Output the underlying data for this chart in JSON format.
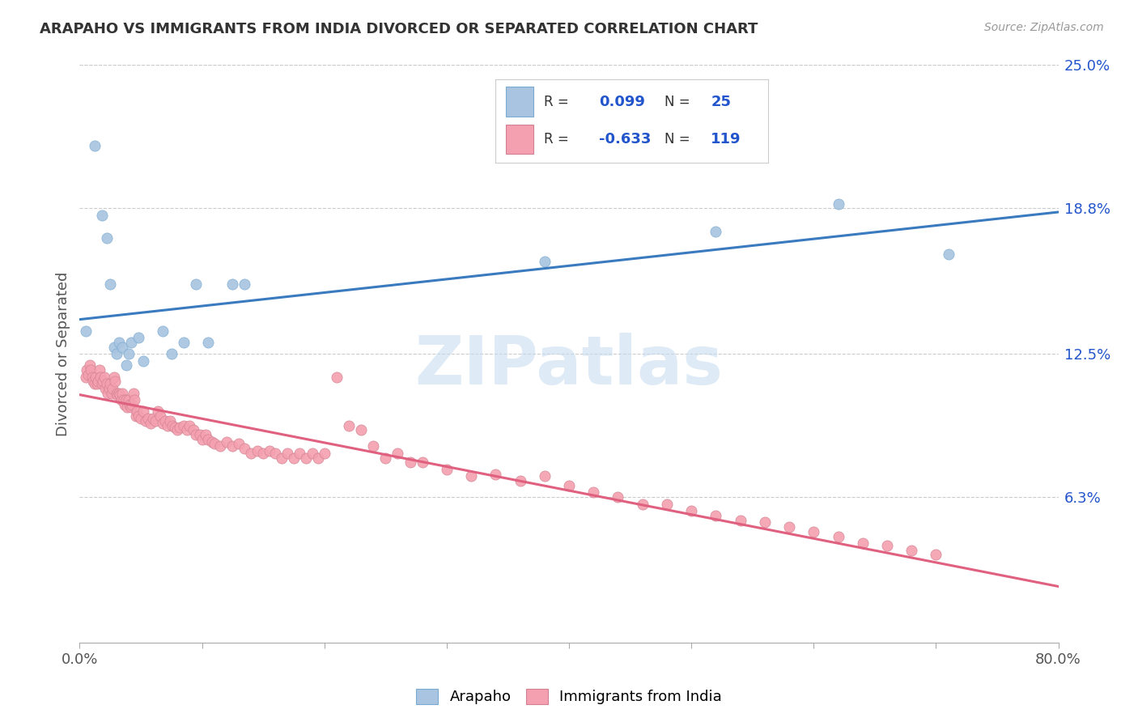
{
  "title": "ARAPAHO VS IMMIGRANTS FROM INDIA DIVORCED OR SEPARATED CORRELATION CHART",
  "source": "Source: ZipAtlas.com",
  "ylabel": "Divorced or Separated",
  "arapaho_R": 0.099,
  "arapaho_N": 25,
  "india_R": -0.633,
  "india_N": 119,
  "arapaho_color": "#a8c4e0",
  "india_color": "#f4a0b0",
  "arapaho_line_color": "#3a7abf",
  "india_line_color": "#e06080",
  "india_dash_color": "#f0a0b8",
  "legend_R_color": "#2255cc",
  "legend_label_color": "#333333",
  "watermark_color": "#dce8f5",
  "xlim": [
    0.0,
    0.8
  ],
  "ylim": [
    0.0,
    0.25
  ],
  "ytick_vals": [
    0.063,
    0.125,
    0.188,
    0.25
  ],
  "ytick_labels": [
    "6.3%",
    "12.5%",
    "18.8%",
    "25.0%"
  ],
  "xtick_vals": [
    0.0,
    0.1,
    0.2,
    0.3,
    0.4,
    0.5,
    0.6,
    0.7,
    0.8
  ],
  "xtick_labels": [
    "0.0%",
    "",
    "",
    "",
    "",
    "",
    "",
    "",
    "80.0%"
  ],
  "arapaho_scatter_x": [
    0.005,
    0.012,
    0.018,
    0.022,
    0.025,
    0.028,
    0.03,
    0.032,
    0.035,
    0.038,
    0.04,
    0.042,
    0.048,
    0.052,
    0.068,
    0.075,
    0.085,
    0.095,
    0.105,
    0.125,
    0.135,
    0.38,
    0.52,
    0.62,
    0.71
  ],
  "arapaho_scatter_y": [
    0.135,
    0.215,
    0.185,
    0.175,
    0.155,
    0.128,
    0.125,
    0.13,
    0.128,
    0.12,
    0.125,
    0.13,
    0.132,
    0.122,
    0.135,
    0.125,
    0.13,
    0.155,
    0.13,
    0.155,
    0.155,
    0.165,
    0.178,
    0.19,
    0.168
  ],
  "india_scatter_x": [
    0.005,
    0.006,
    0.007,
    0.008,
    0.009,
    0.01,
    0.011,
    0.012,
    0.013,
    0.014,
    0.015,
    0.016,
    0.017,
    0.018,
    0.019,
    0.02,
    0.021,
    0.022,
    0.023,
    0.024,
    0.025,
    0.026,
    0.027,
    0.028,
    0.029,
    0.03,
    0.031,
    0.032,
    0.033,
    0.034,
    0.035,
    0.036,
    0.037,
    0.038,
    0.039,
    0.04,
    0.041,
    0.042,
    0.043,
    0.044,
    0.045,
    0.046,
    0.047,
    0.048,
    0.05,
    0.052,
    0.054,
    0.056,
    0.058,
    0.06,
    0.062,
    0.064,
    0.066,
    0.068,
    0.07,
    0.072,
    0.074,
    0.076,
    0.078,
    0.08,
    0.082,
    0.085,
    0.088,
    0.09,
    0.093,
    0.095,
    0.098,
    0.1,
    0.103,
    0.105,
    0.108,
    0.11,
    0.115,
    0.12,
    0.125,
    0.13,
    0.135,
    0.14,
    0.145,
    0.15,
    0.155,
    0.16,
    0.165,
    0.17,
    0.175,
    0.18,
    0.185,
    0.19,
    0.195,
    0.2,
    0.21,
    0.22,
    0.23,
    0.24,
    0.25,
    0.26,
    0.27,
    0.28,
    0.3,
    0.32,
    0.34,
    0.36,
    0.38,
    0.4,
    0.42,
    0.44,
    0.46,
    0.48,
    0.5,
    0.52,
    0.54,
    0.56,
    0.58,
    0.6,
    0.62,
    0.64,
    0.66,
    0.68,
    0.7
  ],
  "india_scatter_y": [
    0.115,
    0.118,
    0.116,
    0.12,
    0.118,
    0.115,
    0.113,
    0.112,
    0.115,
    0.112,
    0.113,
    0.118,
    0.115,
    0.112,
    0.113,
    0.115,
    0.11,
    0.112,
    0.108,
    0.11,
    0.112,
    0.108,
    0.11,
    0.115,
    0.113,
    0.108,
    0.107,
    0.108,
    0.107,
    0.105,
    0.108,
    0.105,
    0.103,
    0.105,
    0.102,
    0.105,
    0.103,
    0.102,
    0.103,
    0.108,
    0.105,
    0.098,
    0.1,
    0.098,
    0.097,
    0.1,
    0.096,
    0.097,
    0.095,
    0.097,
    0.096,
    0.1,
    0.098,
    0.095,
    0.096,
    0.094,
    0.096,
    0.094,
    0.093,
    0.092,
    0.093,
    0.094,
    0.092,
    0.094,
    0.092,
    0.09,
    0.09,
    0.088,
    0.09,
    0.088,
    0.087,
    0.086,
    0.085,
    0.087,
    0.085,
    0.086,
    0.084,
    0.082,
    0.083,
    0.082,
    0.083,
    0.082,
    0.08,
    0.082,
    0.08,
    0.082,
    0.08,
    0.082,
    0.08,
    0.082,
    0.115,
    0.094,
    0.092,
    0.085,
    0.08,
    0.082,
    0.078,
    0.078,
    0.075,
    0.072,
    0.073,
    0.07,
    0.072,
    0.068,
    0.065,
    0.063,
    0.06,
    0.06,
    0.057,
    0.055,
    0.053,
    0.052,
    0.05,
    0.048,
    0.046,
    0.043,
    0.042,
    0.04,
    0.038
  ]
}
